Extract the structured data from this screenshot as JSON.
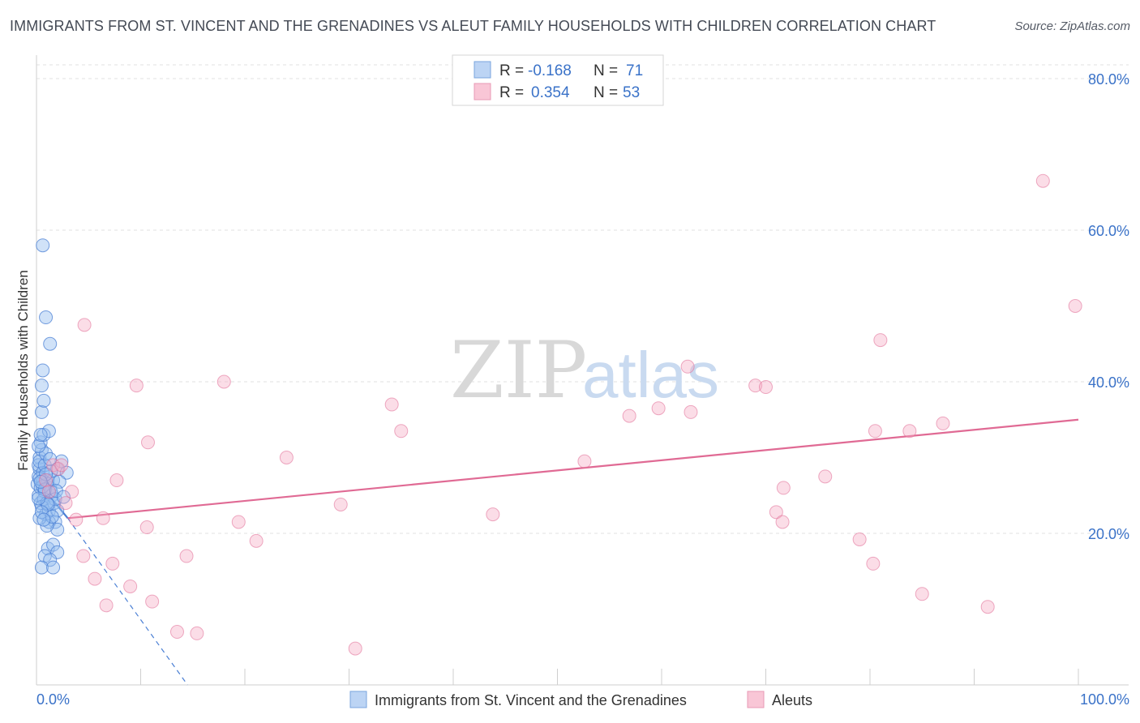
{
  "title": "IMMIGRANTS FROM ST. VINCENT AND THE GRENADINES VS ALEUT FAMILY HOUSEHOLDS WITH CHILDREN CORRELATION CHART",
  "source": "Source: ZipAtlas.com",
  "watermark": {
    "zip": "ZIP",
    "atlas": "atlas"
  },
  "legend_box": {
    "rows": [
      {
        "r_label": "R =",
        "r_value": "-0.168",
        "n_label": "N =",
        "n_value": "71"
      },
      {
        "r_label": "R =",
        "r_value": "0.354",
        "n_label": "N =",
        "n_value": "53"
      }
    ]
  },
  "chart_data": {
    "type": "scatter",
    "ylabel": "Family Households with Children",
    "xlabel": "",
    "xlim": [
      0,
      100
    ],
    "ylim": [
      0,
      80
    ],
    "x_tick_labels": [
      "0.0%",
      "100.0%"
    ],
    "y_ticks": [
      20,
      40,
      60,
      80
    ],
    "y_tick_labels": [
      "20.0%",
      "40.0%",
      "60.0%",
      "80.0%"
    ],
    "colors": {
      "blue": "#a8c8f0",
      "blue_line": "#4a7fd4",
      "pink": "#f5b8cc",
      "pink_line": "#e06a94",
      "value_text": "#3a72c8",
      "label_text": "#333333"
    },
    "series": [
      {
        "name": "Immigrants from St. Vincent and the Grenadines",
        "color": "blue",
        "R": -0.168,
        "N": 71,
        "trend": {
          "x0": 0.0,
          "y0": 27.0,
          "x1": 3.0,
          "y1": 22.0,
          "dash_to_x": 14.5,
          "dash_to_y": 0.0
        },
        "points": [
          [
            0.1,
            26.5
          ],
          [
            0.2,
            27.5
          ],
          [
            0.3,
            28.5
          ],
          [
            0.2,
            25.0
          ],
          [
            0.4,
            24.0
          ],
          [
            0.3,
            30.0
          ],
          [
            0.5,
            31.0
          ],
          [
            0.2,
            29.0
          ],
          [
            0.6,
            27.0
          ],
          [
            0.4,
            26.0
          ],
          [
            0.8,
            25.5
          ],
          [
            1.0,
            26.5
          ],
          [
            0.7,
            24.5
          ],
          [
            0.5,
            23.5
          ],
          [
            0.9,
            22.5
          ],
          [
            1.2,
            23.0
          ],
          [
            1.5,
            25.0
          ],
          [
            1.7,
            24.0
          ],
          [
            2.0,
            23.0
          ],
          [
            1.3,
            26.0
          ],
          [
            1.1,
            27.0
          ],
          [
            0.6,
            28.0
          ],
          [
            0.3,
            29.5
          ],
          [
            0.8,
            29.0
          ],
          [
            0.4,
            32.0
          ],
          [
            0.7,
            33.0
          ],
          [
            1.2,
            33.5
          ],
          [
            0.5,
            36.0
          ],
          [
            0.7,
            37.5
          ],
          [
            0.5,
            39.5
          ],
          [
            0.6,
            41.5
          ],
          [
            0.9,
            48.5
          ],
          [
            1.3,
            45.0
          ],
          [
            0.6,
            58.0
          ],
          [
            2.0,
            28.5
          ],
          [
            2.4,
            29.5
          ],
          [
            2.9,
            28.0
          ],
          [
            1.8,
            21.5
          ],
          [
            1.2,
            21.5
          ],
          [
            2.0,
            20.5
          ],
          [
            1.1,
            18.0
          ],
          [
            1.6,
            18.5
          ],
          [
            2.0,
            17.5
          ],
          [
            0.8,
            17.0
          ],
          [
            1.3,
            16.5
          ],
          [
            0.5,
            15.5
          ],
          [
            1.6,
            15.5
          ],
          [
            1.0,
            21.0
          ],
          [
            0.3,
            22.0
          ],
          [
            1.4,
            25.5
          ],
          [
            1.6,
            27.0
          ],
          [
            0.9,
            30.5
          ],
          [
            0.2,
            31.5
          ],
          [
            0.4,
            33.0
          ],
          [
            1.8,
            24.5
          ],
          [
            1.0,
            24.0
          ],
          [
            0.6,
            26.2
          ],
          [
            1.4,
            28.2
          ],
          [
            2.2,
            26.8
          ],
          [
            0.3,
            27.2
          ],
          [
            0.8,
            25.8
          ],
          [
            1.9,
            25.6
          ],
          [
            1.1,
            23.8
          ],
          [
            0.5,
            22.8
          ],
          [
            0.9,
            27.8
          ],
          [
            1.5,
            22.2
          ],
          [
            0.2,
            24.6
          ],
          [
            0.7,
            21.8
          ],
          [
            1.3,
            29.8
          ],
          [
            2.6,
            24.8
          ],
          [
            0.4,
            26.8
          ]
        ]
      },
      {
        "name": "Aleuts",
        "color": "pink",
        "R": 0.354,
        "N": 53,
        "trend": {
          "x0": 3.0,
          "y0": 22.0,
          "x1": 100.0,
          "y1": 35.0
        },
        "points": [
          [
            0.9,
            27.0
          ],
          [
            1.2,
            25.5
          ],
          [
            1.6,
            29.0
          ],
          [
            2.1,
            28.5
          ],
          [
            2.4,
            29.0
          ],
          [
            2.8,
            24.0
          ],
          [
            3.4,
            25.5
          ],
          [
            3.8,
            21.8
          ],
          [
            4.5,
            17.0
          ],
          [
            4.6,
            47.5
          ],
          [
            5.6,
            14.0
          ],
          [
            6.4,
            22.0
          ],
          [
            6.7,
            10.5
          ],
          [
            7.3,
            16.0
          ],
          [
            7.7,
            27.0
          ],
          [
            9.0,
            13.0
          ],
          [
            9.6,
            39.5
          ],
          [
            10.7,
            32.0
          ],
          [
            10.6,
            20.8
          ],
          [
            11.1,
            11.0
          ],
          [
            13.5,
            7.0
          ],
          [
            14.4,
            17.0
          ],
          [
            15.4,
            6.8
          ],
          [
            18.0,
            40.0
          ],
          [
            19.4,
            21.5
          ],
          [
            21.1,
            19.0
          ],
          [
            24.0,
            30.0
          ],
          [
            29.2,
            23.8
          ],
          [
            30.6,
            4.8
          ],
          [
            34.1,
            37.0
          ],
          [
            35.0,
            33.5
          ],
          [
            43.8,
            22.5
          ],
          [
            52.6,
            29.5
          ],
          [
            56.9,
            35.5
          ],
          [
            59.7,
            36.5
          ],
          [
            62.5,
            42.0
          ],
          [
            62.8,
            36.0
          ],
          [
            69.0,
            39.5
          ],
          [
            70.0,
            39.3
          ],
          [
            71.0,
            22.8
          ],
          [
            71.6,
            21.5
          ],
          [
            71.7,
            26.0
          ],
          [
            75.7,
            27.5
          ],
          [
            79.0,
            19.2
          ],
          [
            80.3,
            16.0
          ],
          [
            80.5,
            33.5
          ],
          [
            81.0,
            45.5
          ],
          [
            83.8,
            33.5
          ],
          [
            85.0,
            12.0
          ],
          [
            87.0,
            34.5
          ],
          [
            91.3,
            10.3
          ],
          [
            96.6,
            66.5
          ],
          [
            99.7,
            50.0
          ]
        ]
      }
    ],
    "legend": [
      "Immigrants from St. Vincent and the Grenadines",
      "Aleuts"
    ],
    "grid": true
  }
}
